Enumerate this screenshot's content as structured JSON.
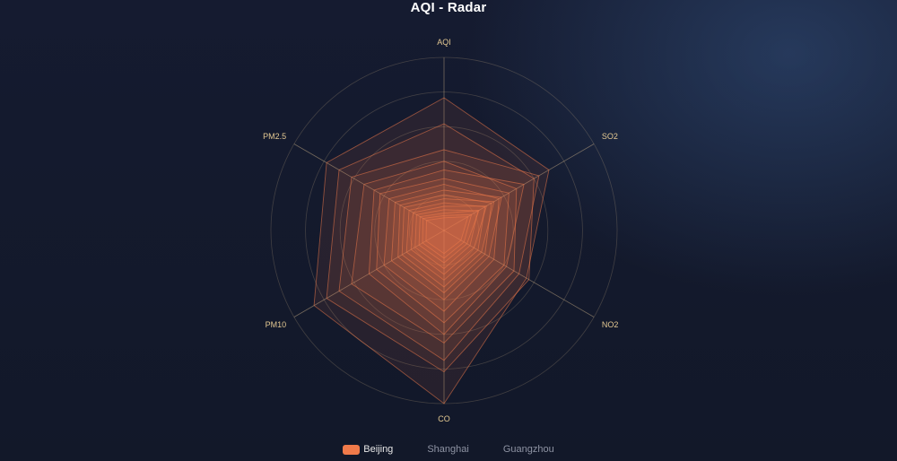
{
  "chart_data": {
    "type": "radar",
    "title": "AQI - Radar",
    "indicators": [
      "AQI",
      "SO2",
      "NO2",
      "CO",
      "PM10",
      "PM2.5"
    ],
    "max": 300,
    "rings": 5,
    "legend": {
      "placement": "bottom-center",
      "items": [
        {
          "name": "Beijing",
          "active": true
        },
        {
          "name": "Shanghai",
          "active": false
        },
        {
          "name": "Guangzhou",
          "active": false
        }
      ]
    },
    "color": "#f07a4a",
    "series": [
      {
        "name": "Beijing",
        "values": [
          [
            230,
            210,
            165,
            300,
            260,
            235
          ],
          [
            185,
            180,
            170,
            245,
            235,
            210
          ],
          [
            140,
            190,
            150,
            225,
            210,
            185
          ],
          [
            120,
            145,
            140,
            195,
            185,
            160
          ],
          [
            105,
            160,
            125,
            180,
            150,
            140
          ],
          [
            90,
            130,
            120,
            160,
            135,
            128
          ],
          [
            80,
            110,
            100,
            140,
            120,
            110
          ],
          [
            70,
            115,
            90,
            120,
            105,
            98
          ],
          [
            62,
            95,
            82,
            108,
            92,
            88
          ],
          [
            55,
            100,
            75,
            98,
            84,
            80
          ],
          [
            48,
            82,
            68,
            86,
            75,
            70
          ],
          [
            42,
            85,
            60,
            76,
            66,
            62
          ],
          [
            36,
            68,
            52,
            66,
            58,
            55
          ],
          [
            30,
            70,
            46,
            56,
            50,
            48
          ],
          [
            26,
            55,
            40,
            48,
            43,
            42
          ],
          [
            22,
            48,
            34,
            40,
            36,
            35
          ]
        ]
      }
    ]
  }
}
